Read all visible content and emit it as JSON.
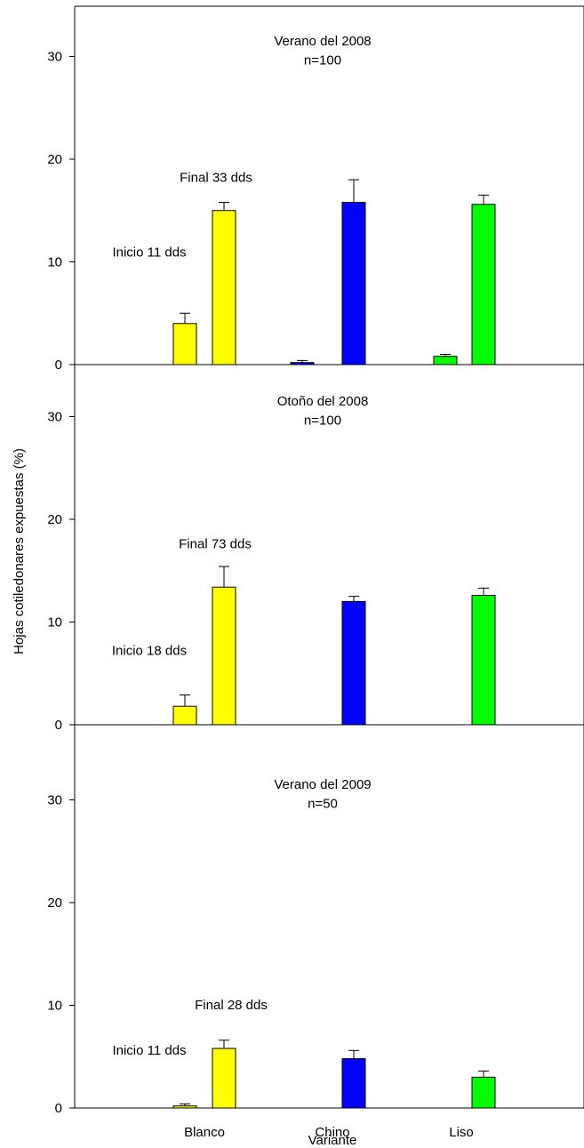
{
  "chart_data": {
    "type": "bar",
    "ylabel": "Hojas cotiledonares expuestas (%)",
    "xlabel": "Variante",
    "categories": [
      "Blanco",
      "Chino",
      "Liso"
    ],
    "ylim": [
      0,
      35
    ],
    "yticks": [
      0,
      10,
      20,
      30
    ],
    "colors": {
      "Blanco": "#ffff00",
      "Chino": "#0000ff",
      "Liso": "#00ff00"
    },
    "panels": [
      {
        "title": "Verano del 2008",
        "subtitle": "n=100",
        "series": [
          {
            "name": "Inicio 11 dds",
            "values": [
              4.0,
              0.2,
              0.8
            ],
            "errors": [
              1.0,
              0.2,
              0.2
            ]
          },
          {
            "name": "Final 33 dds",
            "values": [
              15.0,
              15.8,
              15.6
            ],
            "errors": [
              0.8,
              2.2,
              0.9
            ]
          }
        ]
      },
      {
        "title": "Otoño del 2008",
        "subtitle": "n=100",
        "series": [
          {
            "name": "Inicio 18 dds",
            "values": [
              1.8,
              0,
              0
            ],
            "errors": [
              1.1,
              0,
              0
            ]
          },
          {
            "name": "Final 73 dds",
            "values": [
              13.4,
              12.0,
              12.6
            ],
            "errors": [
              2.0,
              0.5,
              0.7
            ]
          }
        ]
      },
      {
        "title": "Verano del 2009",
        "subtitle": "n=50",
        "series": [
          {
            "name": "Inicio 11 dds",
            "values": [
              0.2,
              0,
              0
            ],
            "errors": [
              0.2,
              0,
              0
            ]
          },
          {
            "name": "Final 28 dds",
            "values": [
              5.8,
              4.8,
              3.0
            ],
            "errors": [
              0.8,
              0.8,
              0.6
            ]
          }
        ]
      }
    ]
  }
}
